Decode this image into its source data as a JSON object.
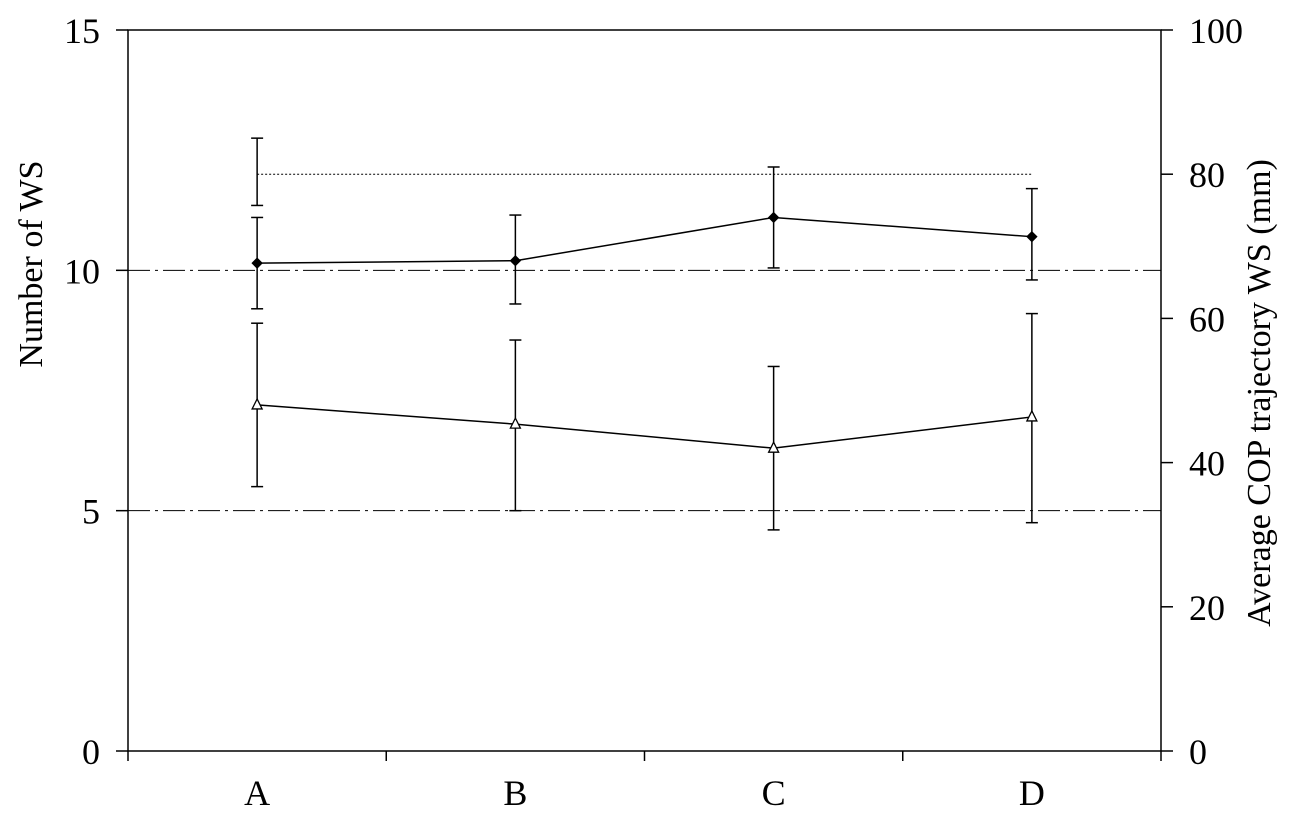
{
  "chart_data": {
    "type": "line",
    "categories": [
      "A",
      "B",
      "C",
      "D"
    ],
    "y_left": {
      "label": "Number of WS",
      "lim": [
        0,
        15
      ],
      "ticks": [
        0,
        5,
        10,
        15
      ]
    },
    "y_right": {
      "label": "Average COP trajectory WS (mm)",
      "lim": [
        0,
        100
      ],
      "ticks": [
        0,
        20,
        40,
        60,
        80,
        100
      ]
    },
    "gridlines_left": [
      5,
      10
    ],
    "reference_line_left": 12,
    "series": [
      {
        "marker": "diamond-filled",
        "axis": "left",
        "values": [
          10.15,
          10.2,
          11.1,
          10.7
        ],
        "err_low": [
          9.2,
          9.3,
          10.05,
          9.8
        ],
        "err_high": [
          11.1,
          11.15,
          12.15,
          11.7
        ]
      },
      {
        "marker": "triangle-open",
        "axis": "left",
        "values": [
          7.2,
          6.8,
          6.3,
          6.95
        ],
        "err_low": [
          5.5,
          5.0,
          4.6,
          4.75
        ],
        "err_high": [
          8.9,
          8.55,
          8.0,
          9.1
        ]
      }
    ],
    "extra_errorbars_left": [
      {
        "category": "A",
        "low": 11.35,
        "high": 12.75
      }
    ],
    "colors": {
      "line": "#000000",
      "grid": "#000000",
      "background": "#ffffff"
    }
  }
}
